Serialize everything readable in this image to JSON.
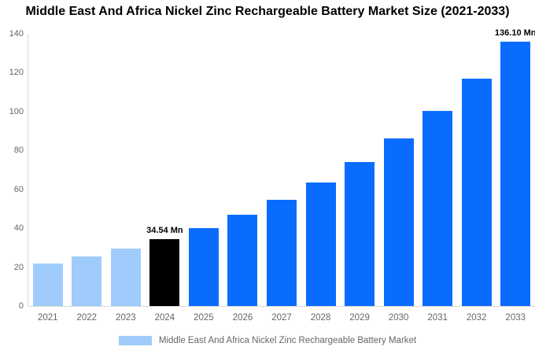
{
  "chart_data": {
    "type": "bar",
    "title": "Middle East And Africa Nickel Zinc Rechargeable Battery Market Size (2021-2033)",
    "categories": [
      "2021",
      "2022",
      "2023",
      "2024",
      "2025",
      "2026",
      "2027",
      "2028",
      "2029",
      "2030",
      "2031",
      "2032",
      "2033"
    ],
    "values": [
      21.87,
      25.47,
      29.66,
      34.54,
      40.22,
      46.84,
      54.55,
      63.53,
      73.99,
      86.17,
      100.35,
      116.86,
      136.1
    ],
    "bar_color_keys": [
      "light_blue",
      "light_blue",
      "light_blue",
      "black",
      "blue",
      "blue",
      "blue",
      "blue",
      "blue",
      "blue",
      "blue",
      "blue",
      "blue"
    ],
    "data_labels": [
      {
        "category": "2024",
        "text": "34.54 Mn"
      },
      {
        "category": "2033",
        "text": "136.10 Mn"
      }
    ],
    "xlabel": "",
    "ylabel": "",
    "ylim": [
      0,
      140
    ],
    "yticks": [
      0,
      20,
      40,
      60,
      80,
      100,
      120,
      140
    ],
    "grid": false,
    "legend": {
      "label": "Middle East And Africa Nickel Zinc Rechargeable Battery Market",
      "position": "bottom"
    }
  },
  "colors": {
    "blue": "#0a6cff",
    "light_blue": "#9fccfa",
    "black": "#000000",
    "title_text": "#000000",
    "axis_text": "#666666",
    "data_label_text": "#000000",
    "axis_line": "#d9d9d9",
    "legend_swatch": "#9fccfa",
    "legend_text": "#666666"
  }
}
